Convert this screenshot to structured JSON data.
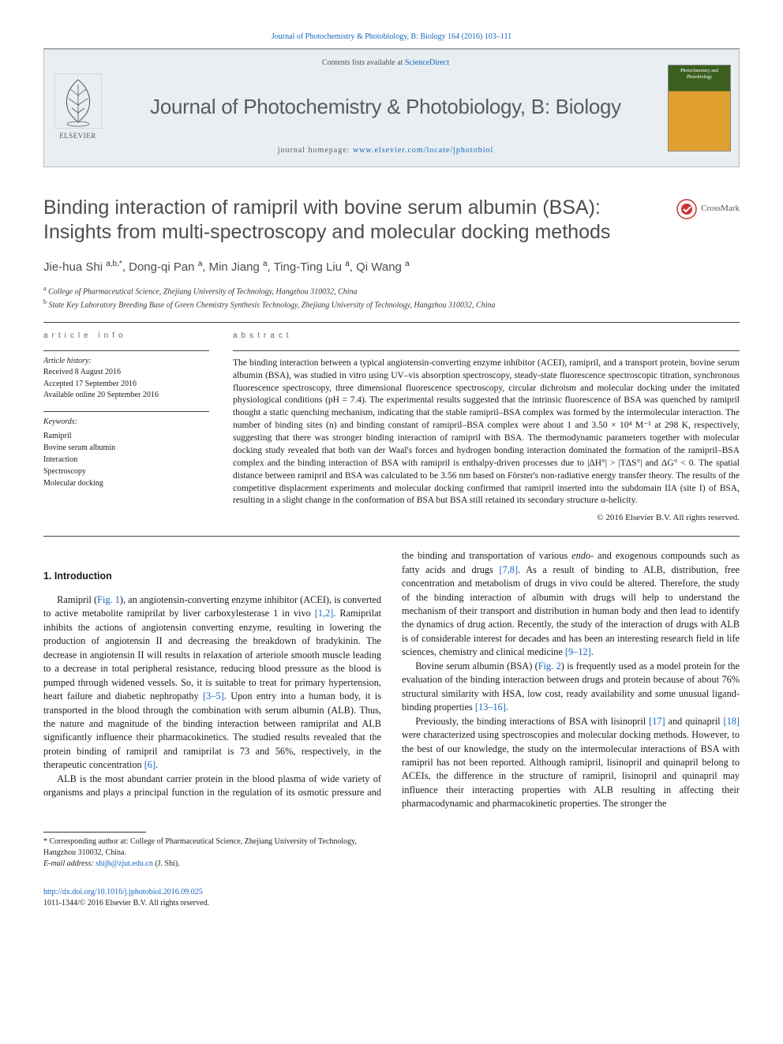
{
  "top_citation": "Journal of Photochemistry & Photobiology, B: Biology 164 (2016) 103–111",
  "header": {
    "contents_prefix": "Contents lists available at ",
    "contents_link": "ScienceDirect",
    "journal_name": "Journal of Photochemistry & Photobiology, B: Biology",
    "homepage_prefix": "journal homepage: ",
    "homepage_link": "www.elsevier.com/locate/jphotobiol",
    "elsevier_label": "ELSEVIER",
    "cover_text": "Photochemistry and Photobiology"
  },
  "crossmark_label": "CrossMark",
  "title": "Binding interaction of ramipril with bovine serum albumin (BSA): Insights from multi-spectroscopy and molecular docking methods",
  "authors_html": "Jie-hua Shi <sup>a,b,*</sup>, Dong-qi Pan <sup>a</sup>, Min Jiang <sup>a</sup>, Ting-Ting Liu <sup>a</sup>, Qi Wang <sup>a</sup>",
  "affiliations": [
    {
      "sup": "a",
      "text": "College of Pharmaceutical Science, Zhejiang University of Technology, Hangzhou 310032, China"
    },
    {
      "sup": "b",
      "text": "State Key Laboratory Breeding Base of Green Chemistry Synthesis Technology, Zhejiang University of Technology, Hangzhou 310032, China"
    }
  ],
  "info": {
    "heading": "article info",
    "history_label": "Article history:",
    "received": "Received 8 August 2016",
    "accepted": "Accepted 17 September 2016",
    "online": "Available online 20 September 2016",
    "keywords_label": "Keywords:",
    "keywords": [
      "Ramipril",
      "Bovine serum albumin",
      "Interaction",
      "Spectroscopy",
      "Molecular docking"
    ]
  },
  "abstract": {
    "heading": "abstract",
    "text": "The binding interaction between a typical angiotensin-converting enzyme inhibitor (ACEI), ramipril, and a transport protein, bovine serum albumin (BSA), was studied in vitro using UV–vis absorption spectroscopy, steady-state fluorescence spectroscopic titration, synchronous fluorescence spectroscopy, three dimensional fluorescence spectroscopy, circular dichroism and molecular docking under the imitated physiological conditions (pH = 7.4). The experimental results suggested that the intrinsic fluorescence of BSA was quenched by ramipril thought a static quenching mechanism, indicating that the stable ramipril–BSA complex was formed by the intermolecular interaction. The number of binding sites (n) and binding constant of ramipril–BSA complex were about 1 and 3.50 × 10⁴ M⁻¹ at 298 K, respectively, suggesting that there was stronger binding interaction of ramipril with BSA. The thermodynamic parameters together with molecular docking study revealed that both van der Waal's forces and hydrogen bonding interaction dominated the formation of the ramipril–BSA complex and the binding interaction of BSA with ramipril is enthalpy-driven processes due to |ΔH°| > |TΔS°| and ΔG° < 0. The spatial distance between ramipril and BSA was calculated to be 3.56 nm based on Förster's non-radiative energy transfer theory. The results of the competitive displacement experiments and molecular docking confirmed that ramipril inserted into the subdomain IIA (site I) of BSA, resulting in a slight change in the conformation of BSA but BSA still retained its secondary structure α-helicity.",
    "copyright": "© 2016 Elsevier B.V. All rights reserved."
  },
  "section1_heading": "1. Introduction",
  "body": {
    "p1_a": "Ramipril (",
    "p1_link1": "Fig. 1",
    "p1_b": "), an angiotensin-converting enzyme inhibitor (ACEI), is converted to active metabolite ramiprilat by liver carboxylesterase 1 in vivo ",
    "p1_link2": "[1,2]",
    "p1_c": ". Ramiprilat inhibits the actions of angiotensin converting enzyme, resulting in lowering the production of angiotensin II and decreasing the breakdown of bradykinin. The decrease in angiotensin II will results in relaxation of arteriole smooth muscle leading to a decrease in total peripheral resistance, reducing blood pressure as the blood is pumped through widened vessels. So, it is suitable to treat for primary hypertension, heart failure and diabetic nephropathy ",
    "p1_link3": "[3–5]",
    "p1_d": ". Upon entry into a human body, it is transported in the blood through the combination with serum albumin (ALB). Thus, the nature and magnitude of the binding interaction between ramiprilat and ALB significantly influence their pharmacokinetics. The studied results revealed that the protein binding of ramipril and ramiprilat is 73 and 56%, respectively, in the therapeutic concentration ",
    "p1_link4": "[6]",
    "p1_e": ".",
    "p2_a": "ALB is the most abundant carrier protein in the blood plasma of wide variety of organisms and plays a principal function in the regulation of its osmotic pressure and the binding and transportation of various ",
    "p2_b": "endo",
    "p2_c": "- and exogenous compounds such as fatty acids and drugs ",
    "p2_link1": "[7,8]",
    "p2_d": ". As a result of binding to ALB, distribution, free concentration and metabolism of drugs in vivo could be altered. Therefore, the study of the binding interaction of albumin with drugs will help to understand the mechanism of their transport and distribution in human body and then lead to identify the dynamics of drug action. Recently, the study of the interaction of drugs with ALB is of considerable interest for decades and has been an interesting research field in life sciences, chemistry and clinical medicine ",
    "p2_link2": "[9–12]",
    "p2_e": ".",
    "p3_a": "Bovine serum albumin (BSA) (",
    "p3_link1": "Fig. 2",
    "p3_b": ") is frequently used as a model protein for the evaluation of the binding interaction between drugs and protein because of about 76% structural similarity with HSA, low cost, ready availability and some unusual ligand-binding properties ",
    "p3_link2": "[13–16]",
    "p3_c": ".",
    "p4_a": "Previously, the binding interactions of BSA with lisinopril ",
    "p4_link1": "[17]",
    "p4_b": " and quinapril ",
    "p4_link2": "[18]",
    "p4_c": " were characterized using spectroscopies and molecular docking methods. However, to the best of our knowledge, the study on the intermolecular interactions of BSA with ramipril has not been reported. Although ramipril, lisinopril and quinapril belong to ACEIs, the difference in the structure of ramipril, lisinopril and quinapril may influence their interacting properties with ALB resulting in affecting their pharmacodynamic and pharmacokinetic properties. The stronger the"
  },
  "footnote": {
    "corr": "* Corresponding author at: College of Pharmaceutical Science, Zhejiang University of Technology, Hangzhou 310032, China.",
    "email_label": "E-mail address: ",
    "email": "shijh@zjut.edu.cn",
    "email_suffix": " (J. Shi)."
  },
  "doi": {
    "link": "http://dx.doi.org/10.1016/j.jphotobiol.2016.09.025",
    "issn": "1011-1344/© 2016 Elsevier B.V. All rights reserved."
  },
  "colors": {
    "link": "#1565c0",
    "heading_grey": "#5b5b5b",
    "header_bg": "#e8eef2",
    "rule": "#444444"
  },
  "typography": {
    "journal_name_pt": 26,
    "article_title_pt": 25,
    "authors_pt": 15,
    "body_pt": 12.3,
    "abstract_pt": 11.5,
    "info_pt": 10,
    "footnote_pt": 10
  }
}
